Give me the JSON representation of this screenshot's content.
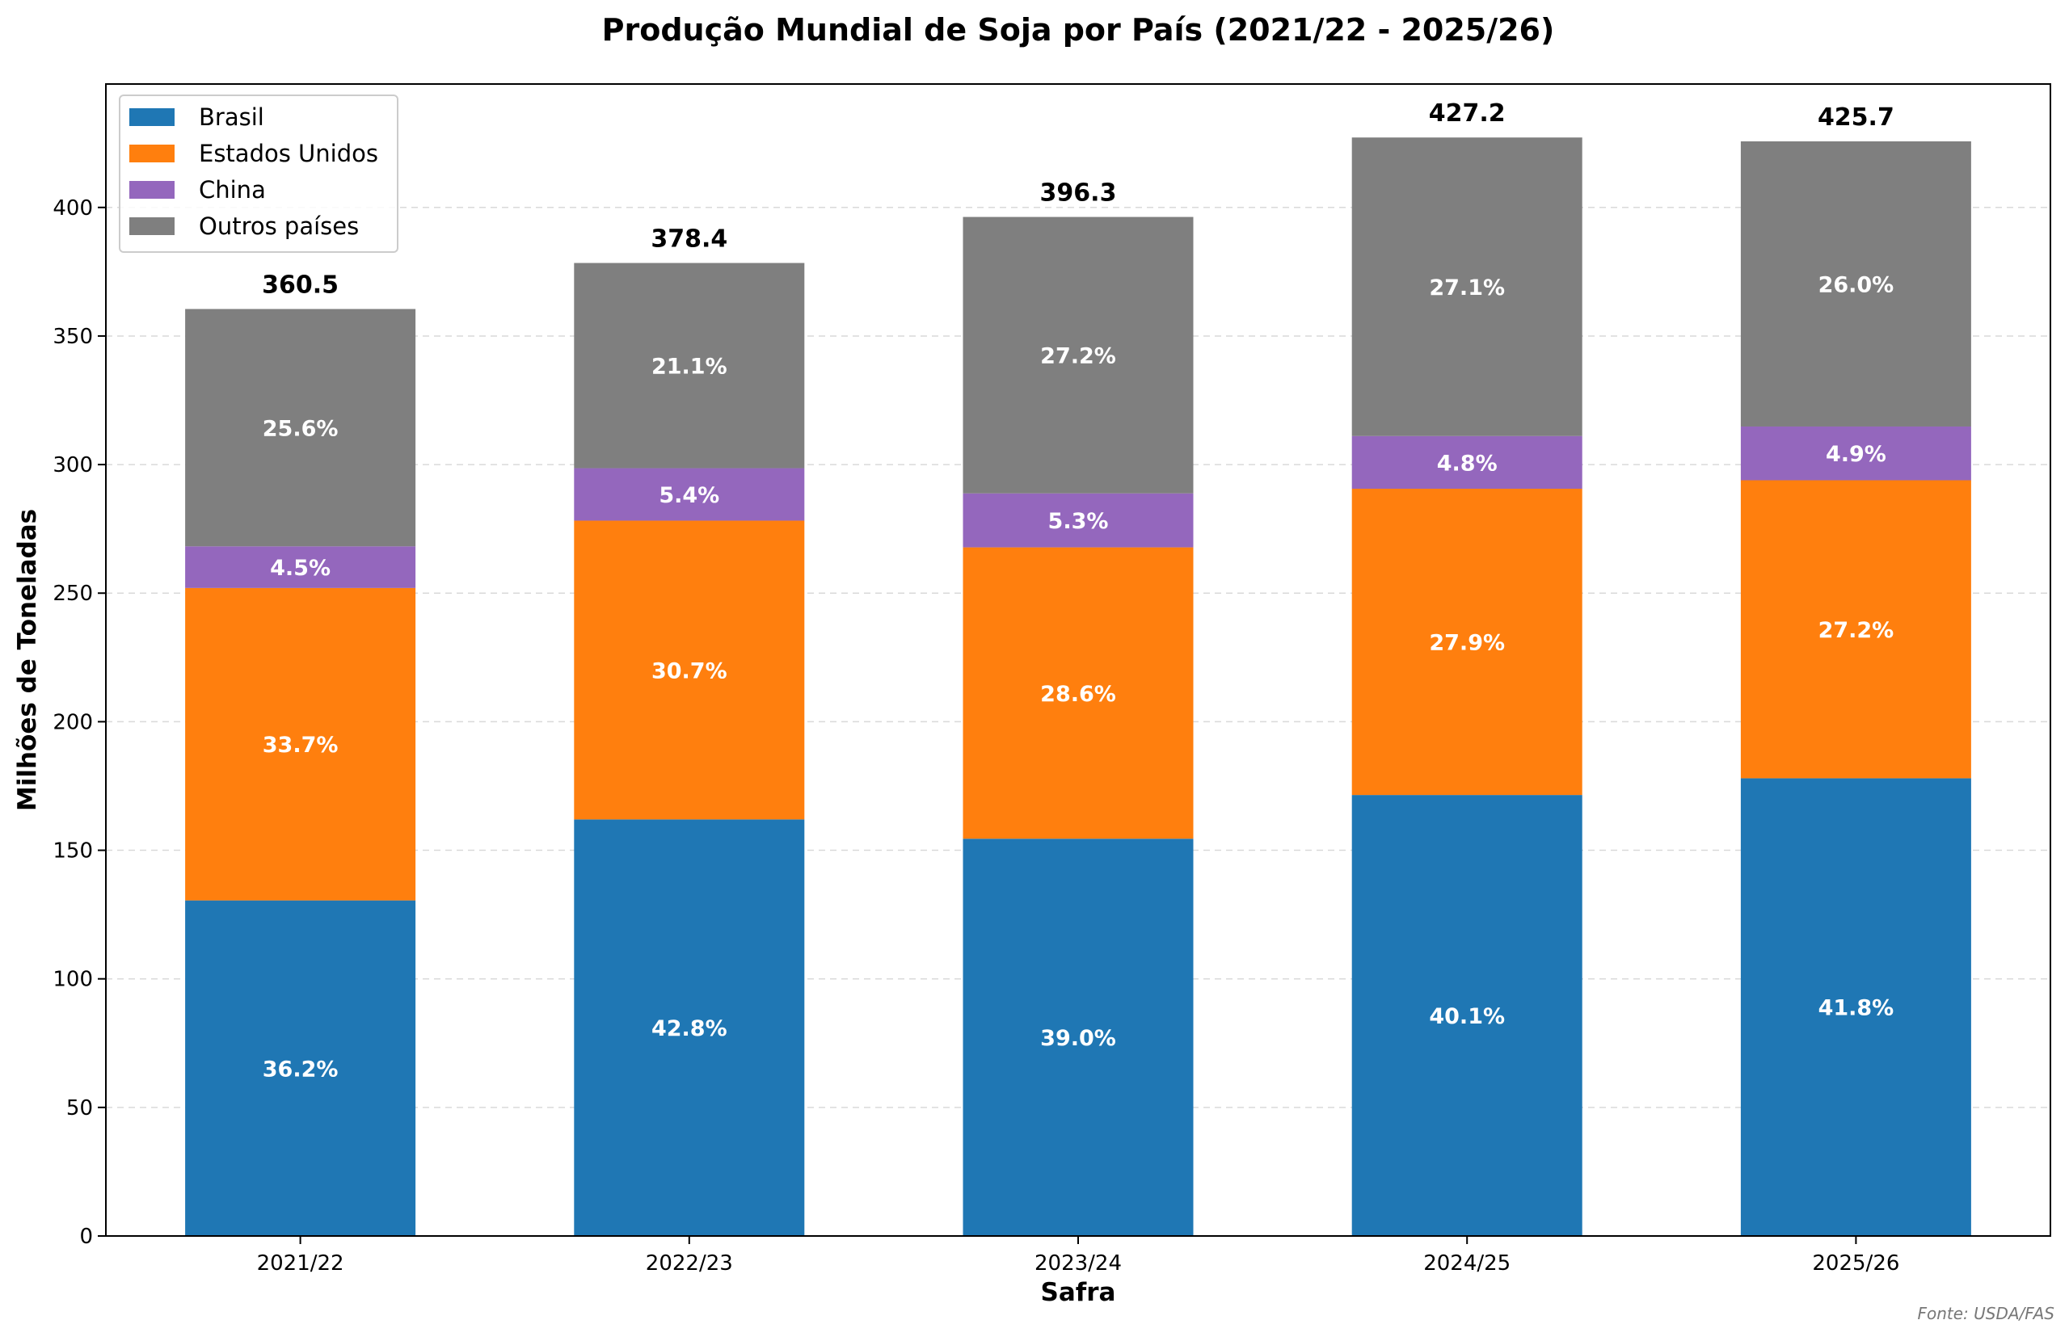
{
  "chart_data": {
    "type": "bar",
    "stacked": true,
    "title": "Produção Mundial de Soja por País (2021/22 - 2025/26)",
    "xlabel": "Safra",
    "ylabel": "Milhões de Toneladas",
    "ylim": [
      0,
      448
    ],
    "yticks": [
      0,
      50,
      100,
      150,
      200,
      250,
      300,
      350,
      400
    ],
    "grid": "y-dashed",
    "legend_position": "top-left",
    "categories": [
      "2021/22",
      "2022/23",
      "2023/24",
      "2024/25",
      "2025/26"
    ],
    "series": [
      {
        "name": "Brasil",
        "color": "#1f77b4",
        "values": [
          130.5,
          162.0,
          154.5,
          171.5,
          178.0
        ],
        "labels": [
          "36.2%",
          "42.8%",
          "39.0%",
          "40.1%",
          "41.8%"
        ]
      },
      {
        "name": "Estados Unidos",
        "color": "#ff7f0e",
        "values": [
          121.5,
          116.2,
          113.3,
          119.1,
          115.9
        ],
        "labels": [
          "33.7%",
          "30.7%",
          "28.6%",
          "27.9%",
          "27.2%"
        ]
      },
      {
        "name": "China",
        "color": "#9467bd",
        "values": [
          16.2,
          20.4,
          21.0,
          20.5,
          20.9
        ],
        "labels": [
          "4.5%",
          "5.4%",
          "5.3%",
          "4.8%",
          "4.9%"
        ]
      },
      {
        "name": "Outros países",
        "color": "#7f7f7f",
        "values": [
          92.3,
          79.8,
          107.5,
          116.1,
          110.9
        ],
        "labels": [
          "25.6%",
          "21.1%",
          "27.2%",
          "27.1%",
          "26.0%"
        ]
      }
    ],
    "totals": [
      "360.5",
      "378.4",
      "396.3",
      "427.2",
      "425.7"
    ],
    "source_note": "Fonte: USDA/FAS"
  }
}
